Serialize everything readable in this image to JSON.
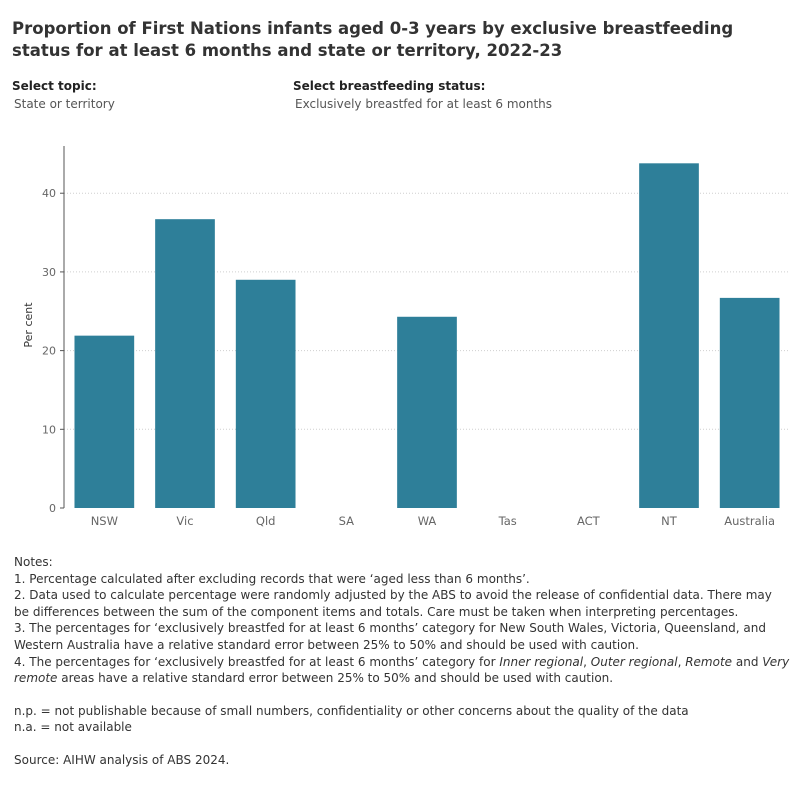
{
  "title": "Proportion of First Nations infants aged 0-3 years by exclusive breastfeeding status for at least 6 months and state or territory, 2022-23",
  "filters": [
    {
      "label": "Select topic:",
      "value": "State or territory"
    },
    {
      "label": "Select breastfeeding status:",
      "value": "Exclusively breastfed for at least 6 months"
    }
  ],
  "chart_data": {
    "type": "bar",
    "ylabel": "Per cent",
    "ylim": [
      0,
      46
    ],
    "yticks": [
      0,
      10,
      20,
      30,
      40
    ],
    "grid": true,
    "bar_color": "#2e7f99",
    "categories": [
      "NSW",
      "Vic",
      "Qld",
      "SA",
      "WA",
      "Tas",
      "ACT",
      "NT",
      "Australia"
    ],
    "values": [
      21.9,
      36.7,
      29.0,
      null,
      24.3,
      null,
      null,
      43.8,
      26.7
    ]
  },
  "notes": {
    "heading": "Notes:",
    "items": [
      "1. Percentage calculated after excluding records that were ‘aged less than 6 months’.",
      "2. Data used to calculate percentage were randomly adjusted by the ABS to avoid the release of confidential data. There may be differences between the sum of the component items and totals. Care must be taken when interpreting percentages.",
      "3. The percentages for ‘exclusively breastfed for at least 6 months’ category for New South Wales, Victoria, Queensland, and Western Australia have a relative standard error between 25% to 50% and should be used with caution."
    ],
    "item4": {
      "prefix": "4. The percentages for ‘exclusively breastfed for at least 6 months’ category for ",
      "r1": "Inner regional",
      "sep1": ", ",
      "r2": "Outer regional",
      "sep2": ", ",
      "r3": "Remote",
      "sep3": " and ",
      "r4": "Very remote",
      "suffix": " areas have a relative standard error between 25% to 50% and should be used with caution."
    },
    "np": "n.p. = not publishable because of small numbers, confidentiality or other concerns about the quality of the data",
    "na": "n.a. = not available",
    "source": "Source: AIHW analysis of ABS 2024."
  }
}
